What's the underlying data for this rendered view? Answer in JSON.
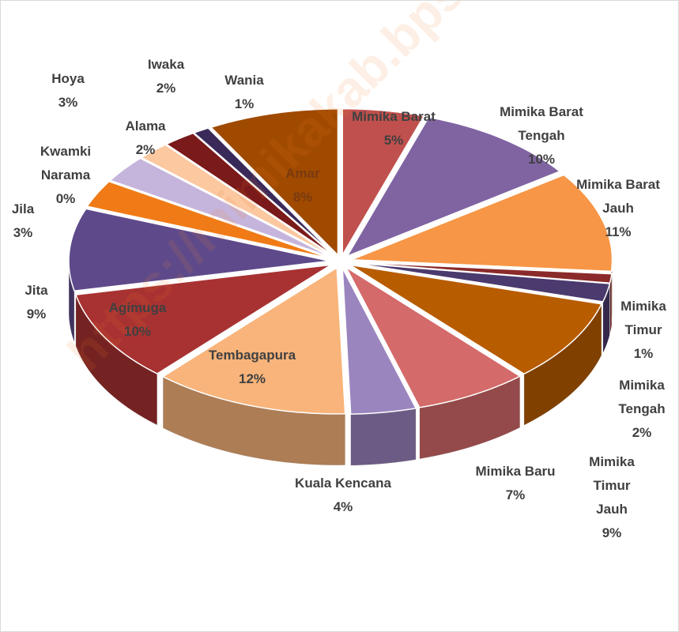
{
  "chart_data": {
    "type": "pie3d",
    "watermark": "https://mimikakab.bps.go.id",
    "categories": [
      "Mimika Barat",
      "Mimika Barat Tengah",
      "Mimika Barat Jauh",
      "Mimika Timur",
      "Mimika Tengah",
      "Mimika Timur Jauh",
      "Mimika Baru",
      "Kuala Kencana",
      "Tembagapura",
      "Agimuga",
      "Jita",
      "Jila",
      "Kwamki Narama",
      "Hoya",
      "Alama",
      "Iwaka",
      "Wania",
      "Amar"
    ],
    "values": [
      5,
      10,
      11,
      1,
      2,
      9,
      7,
      4,
      12,
      10,
      9,
      3,
      0,
      3,
      2,
      2,
      1,
      8
    ],
    "value_labels": [
      "5%",
      "10%",
      "11%",
      "1%",
      "2%",
      "9%",
      "7%",
      "4%",
      "12%",
      "10%",
      "9%",
      "3%",
      "0%",
      "3%",
      "2%",
      "2%",
      "1%",
      "8%"
    ],
    "colors": [
      "#c0504d",
      "#8064a2",
      "#f79646",
      "#8b2a2a",
      "#4b3a6e",
      "#b85c00",
      "#d46a6a",
      "#9b85bf",
      "#f8b47a",
      "#a83232",
      "#5e4a8a",
      "#f07b16",
      "#e6c8c8",
      "#c5b5dc",
      "#fbc8a0",
      "#7a1a1a",
      "#3a2a5a",
      "#a04a00"
    ]
  }
}
